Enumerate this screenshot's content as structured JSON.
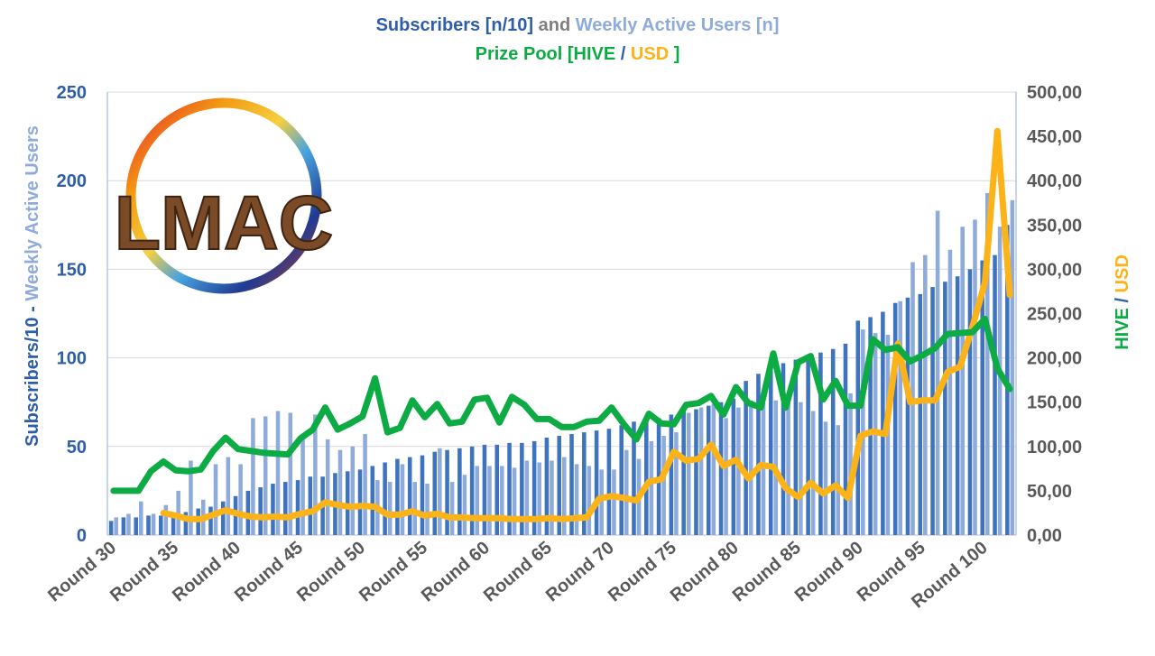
{
  "title": {
    "line1": {
      "part1": "Subscribers [n/10]",
      "part2": " and ",
      "part3": "Weekly Active Users [n]"
    },
    "line2": {
      "part1": "Prize Pool [HIVE ",
      "part2": "/ ",
      "part3": "USD ",
      "part4": "]"
    }
  },
  "axes": {
    "left_label": {
      "part1": "Subscribers/10",
      "part2": " - ",
      "part3": "Weekly Active Users"
    },
    "right_label": {
      "part1": "HIVE ",
      "part2": "/ ",
      "part3": "USD"
    }
  },
  "logo": {
    "text": "LMAC"
  },
  "colors": {
    "subscribers": "#3e74bf",
    "wau": "#8fabdb",
    "hive": "#0cab44",
    "usd": "#fcb317",
    "title_dark": "#2e5ea8",
    "title_grey": "#7f7f7f",
    "title_light": "#8fabdb",
    "tick": "#595959",
    "grid": "#d9d9d9"
  },
  "chart_data": {
    "type": "bar",
    "x": [
      30,
      31,
      32,
      33,
      34,
      35,
      36,
      37,
      38,
      39,
      40,
      41,
      42,
      43,
      44,
      45,
      46,
      47,
      48,
      49,
      50,
      51,
      52,
      53,
      54,
      55,
      56,
      57,
      58,
      59,
      60,
      61,
      62,
      63,
      64,
      65,
      66,
      67,
      68,
      69,
      70,
      71,
      72,
      73,
      74,
      75,
      76,
      77,
      78,
      79,
      80,
      81,
      82,
      83,
      84,
      85,
      86,
      87,
      88,
      89,
      90,
      91,
      92,
      93,
      94,
      95,
      96,
      97,
      98,
      99,
      100,
      101,
      102
    ],
    "x_tick_labels": [
      "Round 30",
      "Round 35",
      "Round 40",
      "Round 45",
      "Round 50",
      "Round 55",
      "Round 60",
      "Round 65",
      "Round 70",
      "Round 75",
      "Round 80",
      "Round 85",
      "Round 90",
      "Round 95",
      "Round 100"
    ],
    "x_tick_values": [
      30,
      35,
      40,
      45,
      50,
      55,
      60,
      65,
      70,
      75,
      80,
      85,
      90,
      95,
      100
    ],
    "y_left": {
      "range": [
        0,
        250
      ],
      "ticks": [
        0,
        50,
        100,
        150,
        200,
        250
      ],
      "tick_labels": [
        "0",
        "50",
        "100",
        "150",
        "200",
        "250"
      ]
    },
    "y_right": {
      "range": [
        0,
        500
      ],
      "ticks": [
        0,
        50,
        100,
        150,
        200,
        250,
        300,
        350,
        400,
        450,
        500
      ],
      "tick_labels": [
        "0,00",
        "50,00",
        "100,00",
        "150,00",
        "200,00",
        "250,00",
        "300,00",
        "350,00",
        "400,00",
        "450,00",
        "500,00"
      ]
    },
    "grid": true,
    "series": [
      {
        "kind": "bar",
        "axis": "left",
        "values": [
          8,
          10,
          10,
          11,
          11,
          12,
          13,
          15,
          16,
          19,
          22,
          25,
          27,
          29,
          30,
          31,
          33,
          33,
          35,
          36,
          37,
          39,
          41,
          43,
          44,
          45,
          47,
          48,
          49,
          50,
          51,
          51,
          52,
          52,
          53,
          55,
          56,
          57,
          58,
          59,
          60,
          62,
          64,
          65,
          66,
          68,
          70,
          71,
          73,
          75,
          77,
          87,
          91,
          93,
          97,
          99,
          101,
          103,
          105,
          108,
          121,
          123,
          126,
          131,
          134,
          136,
          140,
          143,
          146,
          150,
          155,
          158,
          175
        ]
      },
      {
        "kind": "bar",
        "axis": "left",
        "values": [
          10,
          12,
          19,
          12,
          17,
          25,
          42,
          20,
          40,
          44,
          40,
          66,
          67,
          70,
          69,
          55,
          68,
          54,
          48,
          50,
          57,
          31,
          30,
          40,
          30,
          29,
          49,
          30,
          34,
          39,
          39,
          39,
          38,
          42,
          41,
          42,
          44,
          40,
          39,
          37,
          37,
          48,
          43,
          53,
          56,
          58,
          69,
          72,
          74,
          66,
          72,
          76,
          75,
          76,
          77,
          75,
          70,
          64,
          62,
          80,
          116,
          114,
          113,
          132,
          154,
          158,
          183,
          161,
          174,
          178,
          193,
          174,
          189
        ]
      },
      {
        "kind": "line",
        "axis": "right",
        "values": [
          50,
          50,
          50,
          72,
          83,
          73,
          72,
          74,
          95,
          110,
          97,
          95,
          93,
          92,
          91,
          109,
          119,
          144,
          119,
          126,
          134,
          177,
          116,
          121,
          152,
          133,
          148,
          126,
          128,
          153,
          155,
          127,
          156,
          147,
          131,
          131,
          122,
          122,
          128,
          129,
          144,
          125,
          108,
          137,
          126,
          125,
          147,
          149,
          157,
          136,
          167,
          149,
          144,
          205,
          144,
          195,
          202,
          153,
          174,
          146,
          146,
          221,
          209,
          212,
          196,
          203,
          211,
          227,
          228,
          229,
          244,
          188,
          165
        ]
      },
      {
        "kind": "line",
        "axis": "right",
        "values": [
          null,
          null,
          null,
          null,
          25,
          22,
          18,
          18,
          23,
          28,
          24,
          21,
          20,
          21,
          20,
          24,
          27,
          37,
          34,
          32,
          33,
          32,
          23,
          23,
          27,
          22,
          24,
          20,
          20,
          19,
          19,
          19,
          18,
          18,
          18,
          19,
          18,
          19,
          20,
          41,
          44,
          42,
          39,
          60,
          63,
          94,
          84,
          86,
          102,
          78,
          85,
          64,
          79,
          77,
          53,
          43,
          59,
          47,
          56,
          42,
          112,
          117,
          114,
          216,
          150,
          152,
          152,
          184,
          190,
          235,
          285,
          456,
          271
        ]
      }
    ]
  }
}
